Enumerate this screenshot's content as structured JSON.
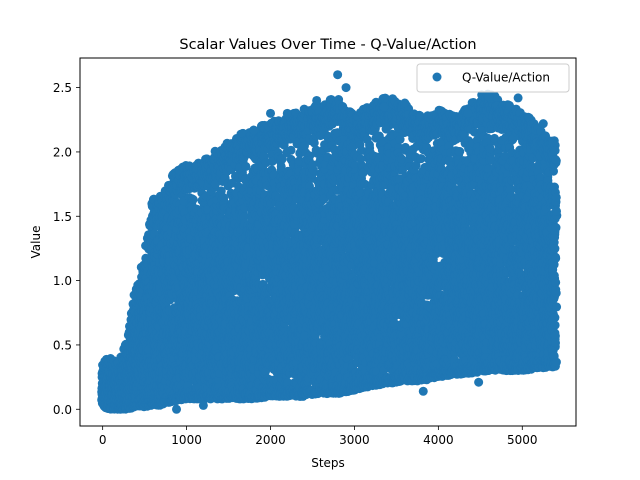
{
  "chart_data": {
    "type": "scatter",
    "title": "Scalar Values Over Time - Q-Value/Action",
    "xlabel": "Steps",
    "ylabel": "Value",
    "xlim": [
      -270,
      5640
    ],
    "ylim": [
      -0.13,
      2.73
    ],
    "x_ticks": [
      0,
      1000,
      2000,
      3000,
      4000,
      5000
    ],
    "x_tick_labels": [
      "0",
      "1000",
      "2000",
      "3000",
      "4000",
      "5000"
    ],
    "y_ticks": [
      0.0,
      0.5,
      1.0,
      1.5,
      2.0,
      2.5
    ],
    "y_tick_labels": [
      "0.0",
      "0.5",
      "1.0",
      "1.5",
      "2.0",
      "2.5"
    ],
    "grid": false,
    "legend_position": "top-right",
    "series": [
      {
        "name": "Q-Value/Action",
        "color": "#1f77b4",
        "x_range": [
          0,
          5400
        ],
        "envelope": {
          "x": [
            0,
            100,
            200,
            300,
            400,
            500,
            600,
            700,
            800,
            900,
            1000,
            1200,
            1400,
            1600,
            1800,
            2000,
            2200,
            2400,
            2600,
            2800,
            3000,
            3200,
            3400,
            3600,
            3800,
            4000,
            4200,
            4400,
            4600,
            4800,
            5000,
            5200,
            5400
          ],
          "lower": [
            0.02,
            0.0,
            0.0,
            0.0,
            0.02,
            0.02,
            0.03,
            0.03,
            0.05,
            0.07,
            0.08,
            0.08,
            0.08,
            0.08,
            0.08,
            0.1,
            0.1,
            0.1,
            0.12,
            0.12,
            0.15,
            0.18,
            0.2,
            0.22,
            0.22,
            0.25,
            0.27,
            0.28,
            0.3,
            0.3,
            0.3,
            0.32,
            0.33
          ],
          "upper": [
            0.3,
            0.32,
            0.3,
            0.5,
            0.9,
            1.1,
            1.55,
            1.6,
            1.7,
            1.8,
            1.82,
            1.85,
            1.95,
            2.05,
            2.1,
            2.15,
            2.2,
            2.25,
            2.3,
            2.35,
            2.2,
            2.3,
            2.35,
            2.3,
            2.2,
            2.25,
            2.2,
            2.3,
            2.4,
            2.3,
            2.25,
            2.1,
            2.0
          ]
        },
        "outliers": [
          {
            "x": 2800,
            "y": 2.6
          },
          {
            "x": 2900,
            "y": 2.5
          },
          {
            "x": 2550,
            "y": 2.4
          },
          {
            "x": 4600,
            "y": 2.43
          },
          {
            "x": 4950,
            "y": 2.42
          },
          {
            "x": 2200,
            "y": 2.3
          },
          {
            "x": 2000,
            "y": 2.3
          },
          {
            "x": 3350,
            "y": 2.35
          },
          {
            "x": 3600,
            "y": 2.38
          },
          {
            "x": 4350,
            "y": 2.3
          },
          {
            "x": 5250,
            "y": 2.22
          },
          {
            "x": 1800,
            "y": 2.17
          },
          {
            "x": 880,
            "y": 0.0
          },
          {
            "x": 1200,
            "y": 0.03
          },
          {
            "x": 3820,
            "y": 0.14
          },
          {
            "x": 4480,
            "y": 0.21
          }
        ]
      }
    ]
  }
}
